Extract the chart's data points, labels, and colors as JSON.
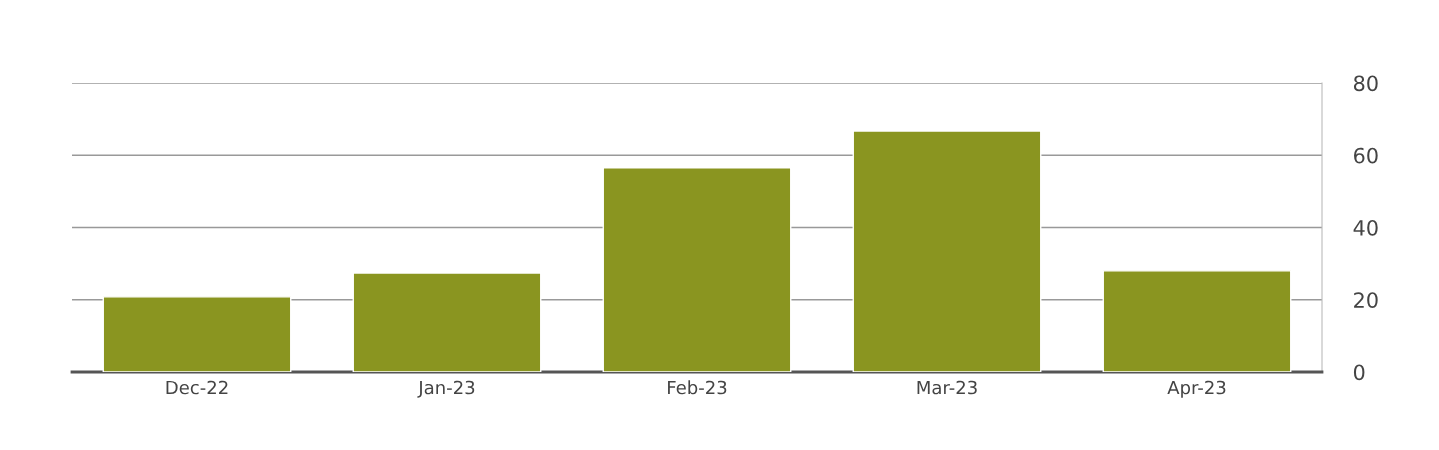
{
  "chart_data": {
    "type": "bar",
    "categories": [
      "Dec-22",
      "Jan-23",
      "Feb-23",
      "Mar-23",
      "Apr-23"
    ],
    "values": [
      20.8,
      27.4,
      56.5,
      66.7,
      28.0
    ],
    "color": "#8a9520",
    "ylim": [
      0,
      80
    ],
    "yticks": [
      0,
      20,
      40,
      60,
      80
    ],
    "grid": "y",
    "legend": false
  }
}
